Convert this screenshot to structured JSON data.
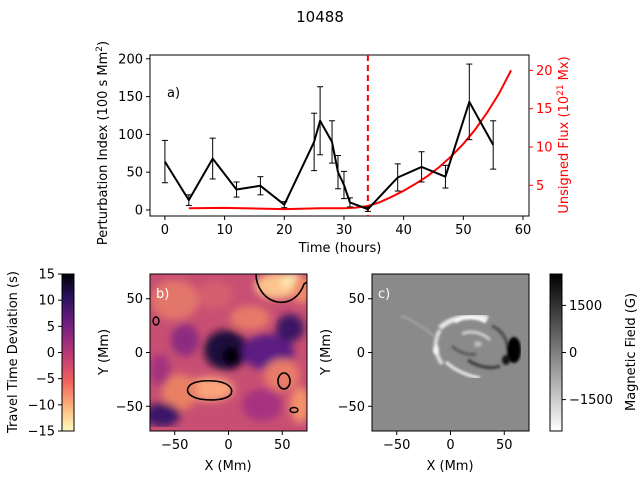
{
  "chart_data": [
    {
      "type": "line",
      "panel_label": "a)",
      "title": "10488",
      "xlabel": "Time (hours)",
      "ylabel_left": "Perturbation Index (100 s Mm",
      "ylabel_left_sup": "2",
      "ylabel_left_tail": ")",
      "ylabel_right": "Unsigned Flux (10",
      "ylabel_right_sup": "21",
      "ylabel_right_tail": " Mx)",
      "xlim": [
        -2.5,
        61
      ],
      "ylim_left": [
        -8,
        205
      ],
      "ylim_right": [
        1.0,
        22.0
      ],
      "x_ticks": [
        0,
        10,
        20,
        30,
        40,
        50,
        60
      ],
      "y_ticks_left": [
        0,
        50,
        100,
        150,
        200
      ],
      "y_ticks_right": [
        5,
        10,
        15,
        20
      ],
      "vline_x": 34,
      "series": [
        {
          "name": "Perturbation Index",
          "axis": "left",
          "color": "#000000",
          "x": [
            0,
            4,
            8,
            12,
            16,
            20,
            25,
            26,
            28,
            29,
            30,
            31,
            34,
            39,
            43,
            47,
            51,
            55
          ],
          "y": [
            64,
            13,
            68,
            27,
            32,
            7,
            90,
            118,
            90,
            50,
            33,
            10,
            1,
            43,
            57,
            44,
            143,
            86
          ],
          "err": [
            28,
            7,
            27,
            10,
            12,
            4,
            38,
            45,
            28,
            22,
            18,
            6,
            3,
            18,
            20,
            15,
            50,
            32
          ]
        },
        {
          "name": "Unsigned Flux",
          "axis": "right",
          "color": "#ff0000",
          "x": [
            4,
            10,
            20,
            26,
            30,
            32,
            34,
            36,
            38,
            40,
            42,
            44,
            46,
            48,
            50,
            52,
            54,
            56,
            58
          ],
          "y": [
            2.0,
            2.05,
            1.9,
            2.0,
            2.0,
            2.1,
            2.3,
            2.8,
            3.5,
            4.3,
            5.2,
            6.2,
            7.4,
            8.8,
            10.4,
            12.3,
            14.5,
            17.0,
            20.0
          ]
        }
      ]
    },
    {
      "type": "heatmap",
      "panel_label": "b)",
      "xlabel": "X (Mm)",
      "ylabel": "Y (Mm)",
      "xlim": [
        -73,
        73
      ],
      "ylim": [
        -73,
        73
      ],
      "x_ticks": [
        -50,
        0,
        50
      ],
      "y_ticks": [
        -50,
        0,
        50
      ],
      "colorbar_label": "Travel Time Deviation (s)",
      "colorbar_ticks": [
        15,
        10,
        5,
        0,
        -5,
        -10,
        -15
      ],
      "colormap": "magma_r"
    },
    {
      "type": "heatmap",
      "panel_label": "c)",
      "xlabel": "X (Mm)",
      "ylabel": "Y (Mm)",
      "xlim": [
        -73,
        73
      ],
      "ylim": [
        -73,
        73
      ],
      "x_ticks": [
        -50,
        0,
        50
      ],
      "y_ticks": [
        -50,
        0,
        50
      ],
      "colorbar_label": "Magnetic Field (G)",
      "colorbar_ticks": [
        1500,
        0,
        -1500
      ],
      "colormap": "gray"
    }
  ]
}
